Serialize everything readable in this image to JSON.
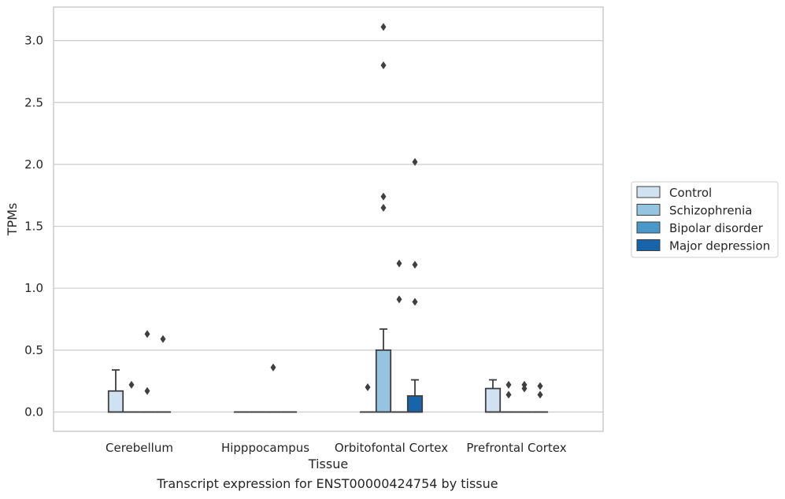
{
  "caption": "Transcript expression for ENST00000424754 by tissue",
  "chart_data": {
    "type": "box",
    "xlabel": "Tissue",
    "ylabel": "TPMs",
    "ylim": [
      -0.15,
      3.27
    ],
    "yticks": [
      0.0,
      0.5,
      1.0,
      1.5,
      2.0,
      2.5,
      3.0
    ],
    "ytick_labels": [
      "0.0",
      "0.5",
      "1.0",
      "1.5",
      "2.0",
      "2.5",
      "3.0"
    ],
    "grid": "horizontal",
    "legend_position": "right",
    "categories": [
      "Cerebellum",
      "Hipppocampus",
      "Orbitofontal Cortex",
      "Prefrontal Cortex"
    ],
    "series": [
      {
        "name": "Control",
        "color": "#d0e1f2",
        "boxes": [
          {
            "q1": 0.0,
            "median": 0.0,
            "q3": 0.17,
            "whisker_low": 0.0,
            "whisker_high": 0.34,
            "outliers": []
          },
          {
            "q1": 0.0,
            "median": 0.0,
            "q3": 0.0,
            "whisker_low": 0.0,
            "whisker_high": 0.0,
            "outliers": []
          },
          {
            "q1": 0.0,
            "median": 0.0,
            "q3": 0.0,
            "whisker_low": 0.0,
            "whisker_high": 0.0,
            "outliers": [
              0.2
            ]
          },
          {
            "q1": 0.0,
            "median": 0.0,
            "q3": 0.19,
            "whisker_low": 0.0,
            "whisker_high": 0.26,
            "outliers": []
          }
        ]
      },
      {
        "name": "Schizophrenia",
        "color": "#94c4df",
        "boxes": [
          {
            "q1": 0.0,
            "median": 0.0,
            "q3": 0.0,
            "whisker_low": 0.0,
            "whisker_high": 0.0,
            "outliers": [
              0.22
            ]
          },
          {
            "q1": 0.0,
            "median": 0.0,
            "q3": 0.0,
            "whisker_low": 0.0,
            "whisker_high": 0.0,
            "outliers": []
          },
          {
            "q1": 0.0,
            "median": 0.0,
            "q3": 0.5,
            "whisker_low": 0.0,
            "whisker_high": 0.67,
            "outliers": [
              3.11,
              2.8,
              1.74,
              1.65
            ]
          },
          {
            "q1": 0.0,
            "median": 0.0,
            "q3": 0.0,
            "whisker_low": 0.0,
            "whisker_high": 0.0,
            "outliers": [
              0.22,
              0.14
            ]
          }
        ]
      },
      {
        "name": "Bipolar disorder",
        "color": "#4a98c9",
        "boxes": [
          {
            "q1": 0.0,
            "median": 0.0,
            "q3": 0.0,
            "whisker_low": 0.0,
            "whisker_high": 0.0,
            "outliers": [
              0.63,
              0.17
            ]
          },
          {
            "q1": 0.0,
            "median": 0.0,
            "q3": 0.0,
            "whisker_low": 0.0,
            "whisker_high": 0.0,
            "outliers": [
              0.36
            ]
          },
          {
            "q1": 0.0,
            "median": 0.0,
            "q3": 0.0,
            "whisker_low": 0.0,
            "whisker_high": 0.0,
            "outliers": [
              1.2,
              0.91
            ]
          },
          {
            "q1": 0.0,
            "median": 0.0,
            "q3": 0.0,
            "whisker_low": 0.0,
            "whisker_high": 0.0,
            "outliers": [
              0.22,
              0.19
            ]
          }
        ]
      },
      {
        "name": "Major depression",
        "color": "#1764ab",
        "boxes": [
          {
            "q1": 0.0,
            "median": 0.0,
            "q3": 0.0,
            "whisker_low": 0.0,
            "whisker_high": 0.0,
            "outliers": [
              0.59
            ]
          },
          {
            "q1": 0.0,
            "median": 0.0,
            "q3": 0.0,
            "whisker_low": 0.0,
            "whisker_high": 0.0,
            "outliers": []
          },
          {
            "q1": 0.0,
            "median": 0.0,
            "q3": 0.13,
            "whisker_low": 0.0,
            "whisker_high": 0.26,
            "outliers": [
              2.02,
              1.19,
              0.89
            ]
          },
          {
            "q1": 0.0,
            "median": 0.0,
            "q3": 0.0,
            "whisker_low": 0.0,
            "whisker_high": 0.0,
            "outliers": [
              0.21,
              0.14
            ]
          }
        ]
      }
    ]
  }
}
